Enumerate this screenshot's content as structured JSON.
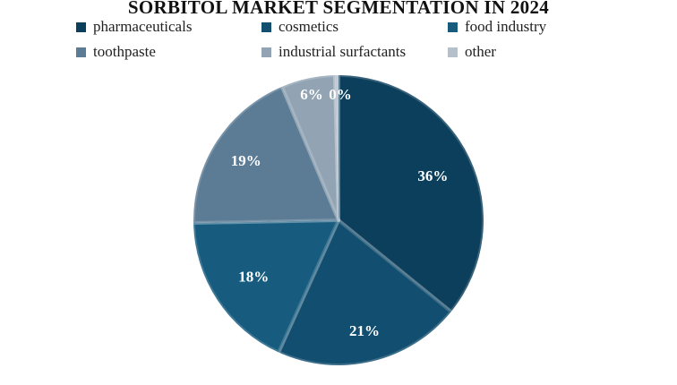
{
  "chart_data": {
    "type": "pie",
    "title": "SORBITOL MARKET SEGMENTATION IN 2024",
    "legend_position": "top",
    "slices": [
      {
        "label": "pharmaceuticals",
        "value": 36,
        "value_label": "36%",
        "color": "#0c3f5c"
      },
      {
        "label": "cosmetics",
        "value": 21,
        "value_label": "21%",
        "color": "#124e6f"
      },
      {
        "label": "food industry",
        "value": 18,
        "value_label": "18%",
        "color": "#175c7f"
      },
      {
        "label": "toothpaste",
        "value": 19,
        "value_label": "19%",
        "color": "#5c7c95"
      },
      {
        "label": "industrial surfactants",
        "value": 6,
        "value_label": "6%",
        "color": "#92a4b4"
      },
      {
        "label": "other",
        "value": 0.4,
        "value_label": "0%",
        "color": "#b5c0ca"
      }
    ]
  }
}
